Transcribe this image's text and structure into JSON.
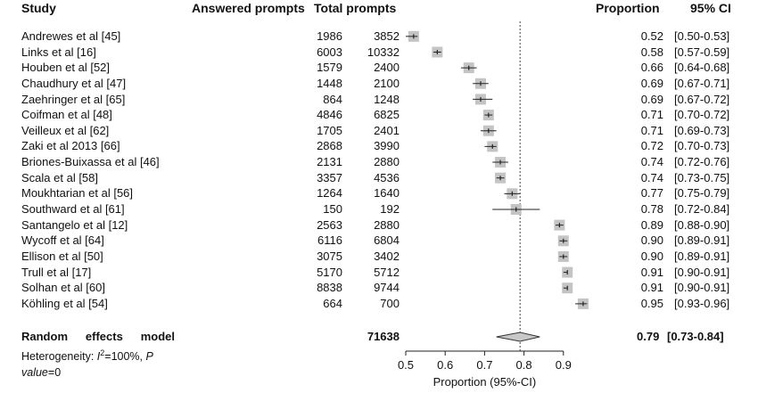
{
  "headers": {
    "study": "Study",
    "answered": "Answered prompts",
    "total": "Total prompts",
    "proportion": "Proportion",
    "ci": "95% CI"
  },
  "model": {
    "label": "Random effects model",
    "total": "71638",
    "estimate": "0.79",
    "ci": "[0.73-0.84]",
    "het_line1_prefix": "Heterogeneity: ",
    "het_i": "I",
    "het_sup": "2",
    "het_line1_suffix": "=100%, ",
    "het_p": "P",
    "het_line2_value_word": "value",
    "het_line2_rest": "=0"
  },
  "chart_data": {
    "type": "forest",
    "title": "",
    "xlabel": "Proportion (95%-CI)",
    "xlim": [
      0.5,
      0.95
    ],
    "xticks": [
      "0.5",
      "0.6",
      "0.7",
      "0.8",
      "0.9"
    ],
    "reference_line": 0.79,
    "rows": [
      {
        "study": "Andrewes et al",
        "ref": "[45]",
        "answered": "1986",
        "total": "3852",
        "prop": 0.52,
        "lo": 0.5,
        "hi": 0.53,
        "prop_text": "0.52",
        "ci_text": "[0.50-0.53]"
      },
      {
        "study": "Links et al",
        "ref": "[16]",
        "answered": "6003",
        "total": "10332",
        "prop": 0.58,
        "lo": 0.57,
        "hi": 0.59,
        "prop_text": "0.58",
        "ci_text": "[0.57-0.59]"
      },
      {
        "study": "Houben et al",
        "ref": "[52]",
        "answered": "1579",
        "total": "2400",
        "prop": 0.66,
        "lo": 0.64,
        "hi": 0.68,
        "prop_text": "0.66",
        "ci_text": "[0.64-0.68]"
      },
      {
        "study": "Chaudhury et al",
        "ref": "[47]",
        "answered": "1448",
        "total": "2100",
        "prop": 0.69,
        "lo": 0.67,
        "hi": 0.71,
        "prop_text": "0.69",
        "ci_text": "[0.67-0.71]"
      },
      {
        "study": "Zaehringer et al",
        "ref": "[65]",
        "answered": "864",
        "total": "1248",
        "prop": 0.69,
        "lo": 0.67,
        "hi": 0.72,
        "prop_text": "0.69",
        "ci_text": "[0.67-0.72]"
      },
      {
        "study": "Coifman et al",
        "ref": "[48]",
        "answered": "4846",
        "total": "6825",
        "prop": 0.71,
        "lo": 0.7,
        "hi": 0.72,
        "prop_text": "0.71",
        "ci_text": "[0.70-0.72]"
      },
      {
        "study": "Veilleux et al",
        "ref": "[62]",
        "answered": "1705",
        "total": "2401",
        "prop": 0.71,
        "lo": 0.69,
        "hi": 0.73,
        "prop_text": "0.71",
        "ci_text": "[0.69-0.73]"
      },
      {
        "study": "Zaki et al 2013",
        "ref": "[66]",
        "answered": "2868",
        "total": "3990",
        "prop": 0.72,
        "lo": 0.7,
        "hi": 0.73,
        "prop_text": "0.72",
        "ci_text": "[0.70-0.73]"
      },
      {
        "study": "Briones-Buixassa et al",
        "ref": "[46]",
        "answered": "2131",
        "total": "2880",
        "prop": 0.74,
        "lo": 0.72,
        "hi": 0.76,
        "prop_text": "0.74",
        "ci_text": "[0.72-0.76]"
      },
      {
        "study": "Scala et al",
        "ref": "[58]",
        "answered": "3357",
        "total": "4536",
        "prop": 0.74,
        "lo": 0.73,
        "hi": 0.75,
        "prop_text": "0.74",
        "ci_text": "[0.73-0.75]"
      },
      {
        "study": "Moukhtarian et al",
        "ref": "[56]",
        "answered": "1264",
        "total": "1640",
        "prop": 0.77,
        "lo": 0.75,
        "hi": 0.79,
        "prop_text": "0.77",
        "ci_text": "[0.75-0.79]"
      },
      {
        "study": "Southward et al",
        "ref": "[61]",
        "answered": "150",
        "total": "192",
        "prop": 0.78,
        "lo": 0.72,
        "hi": 0.84,
        "prop_text": "0.78",
        "ci_text": "[0.72-0.84]"
      },
      {
        "study": "Santangelo et al",
        "ref": "[12]",
        "answered": "2563",
        "total": "2880",
        "prop": 0.89,
        "lo": 0.88,
        "hi": 0.9,
        "prop_text": "0.89",
        "ci_text": "[0.88-0.90]"
      },
      {
        "study": "Wycoff et al",
        "ref": "[64]",
        "answered": "6116",
        "total": "6804",
        "prop": 0.9,
        "lo": 0.89,
        "hi": 0.91,
        "prop_text": "0.90",
        "ci_text": "[0.89-0.91]"
      },
      {
        "study": "Ellison et al",
        "ref": "[50]",
        "answered": "3075",
        "total": "3402",
        "prop": 0.9,
        "lo": 0.89,
        "hi": 0.91,
        "prop_text": "0.90",
        "ci_text": "[0.89-0.91]"
      },
      {
        "study": "Trull et al",
        "ref": "[17]",
        "answered": "5170",
        "total": "5712",
        "prop": 0.91,
        "lo": 0.9,
        "hi": 0.91,
        "prop_text": "0.91",
        "ci_text": "[0.90-0.91]"
      },
      {
        "study": "Solhan et al",
        "ref": "[60]",
        "answered": "8838",
        "total": "9744",
        "prop": 0.91,
        "lo": 0.9,
        "hi": 0.91,
        "prop_text": "0.91",
        "ci_text": "[0.90-0.91]"
      },
      {
        "study": "Köhling et al",
        "ref": "[54]",
        "answered": "664",
        "total": "700",
        "prop": 0.95,
        "lo": 0.93,
        "hi": 0.96,
        "prop_text": "0.95",
        "ci_text": "[0.93-0.96]"
      }
    ],
    "summary": {
      "prop": 0.79,
      "lo": 0.73,
      "hi": 0.84
    },
    "colors": {
      "square": "#c4c4c4",
      "line": "#222222",
      "diamond": "#c8c8c8"
    }
  }
}
